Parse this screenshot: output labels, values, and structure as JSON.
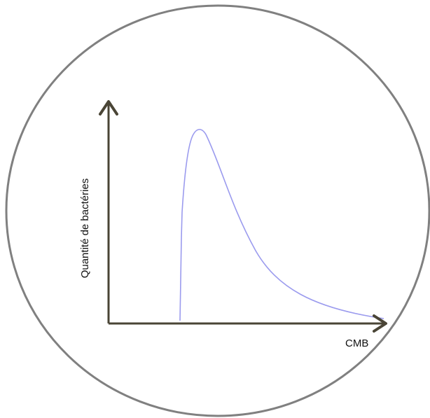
{
  "diagram": {
    "title": "",
    "colors": {
      "circle_stroke": "#808080",
      "axis": "#4a4536",
      "curve": "#9b9bee"
    },
    "y_axis_label": "Quantité de bactéries",
    "x_axis_label": "CMB"
  }
}
